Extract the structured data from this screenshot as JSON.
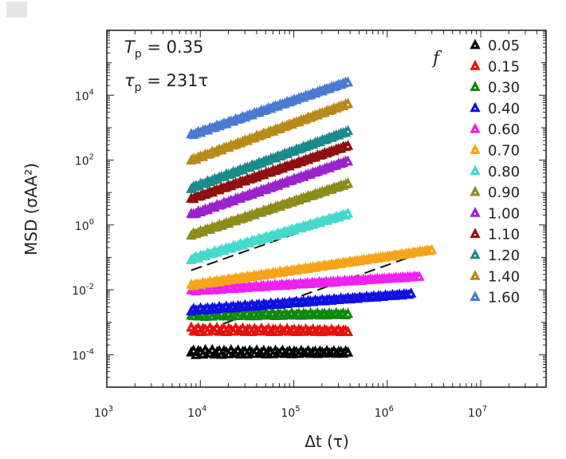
{
  "chart_data": {
    "type": "scatter",
    "xlabel": "Δt (τ)",
    "ylabel": "MSD (σAA²)",
    "x_scale": "log",
    "y_scale": "log",
    "xlim": [
      1000,
      50000000
    ],
    "ylim": [
      1e-05,
      1000000
    ],
    "x_ticks": [
      {
        "value": 1000,
        "base": "10",
        "exp": "3"
      },
      {
        "value": 10000,
        "base": "10",
        "exp": "4"
      },
      {
        "value": 100000,
        "base": "10",
        "exp": "5"
      },
      {
        "value": 1000000,
        "base": "10",
        "exp": "6"
      },
      {
        "value": 10000000,
        "base": "10",
        "exp": "7"
      }
    ],
    "y_ticks": [
      {
        "value": 0.0001,
        "base": "10",
        "exp": "-4"
      },
      {
        "value": 0.01,
        "base": "10",
        "exp": "-2"
      },
      {
        "value": 1,
        "base": "10",
        "exp": "0"
      },
      {
        "value": 100,
        "base": "10",
        "exp": "2"
      },
      {
        "value": 10000,
        "base": "10",
        "exp": "4"
      }
    ],
    "annotations": {
      "tp": {
        "sym": "T",
        "sub": "p",
        "rest": " = 0.35"
      },
      "taup": {
        "sym": "τ",
        "sub": "p",
        "rest": " = 231τ"
      }
    },
    "legend_title": "f",
    "legend_position": "top-right",
    "marker": "triangle",
    "series": [
      {
        "name": "0.05",
        "color": "#000000",
        "x_start": 8000,
        "x_end": 380000,
        "y_start": 0.00012,
        "y_end": 0.00012,
        "wiggle": 0.08
      },
      {
        "name": "0.15",
        "color": "#e8120c",
        "x_start": 8000,
        "x_end": 380000,
        "y_start": 0.0006,
        "y_end": 0.00055,
        "wiggle": 0.07
      },
      {
        "name": "0.30",
        "color": "#0d8a0d",
        "x_start": 8000,
        "x_end": 380000,
        "y_start": 0.0017,
        "y_end": 0.0018,
        "wiggle": 0.06
      },
      {
        "name": "0.40",
        "color": "#1010e0",
        "x_start": 8000,
        "x_end": 1800000,
        "y_start": 0.0024,
        "y_end": 0.0075,
        "wiggle": 0.04
      },
      {
        "name": "0.60",
        "color": "#ee22ee",
        "x_start": 8000,
        "x_end": 2200000,
        "y_start": 0.0095,
        "y_end": 0.026,
        "wiggle": 0.03
      },
      {
        "name": "0.70",
        "color": "#f5a418",
        "x_start": 8000,
        "x_end": 3000000,
        "y_start": 0.014,
        "y_end": 0.17,
        "wiggle": 0.03
      },
      {
        "name": "0.80",
        "color": "#44d9cc",
        "x_start": 8000,
        "x_end": 380000,
        "y_start": 0.09,
        "y_end": 2.2,
        "wiggle": 0.04
      },
      {
        "name": "0.90",
        "color": "#8c8c1a",
        "x_start": 8000,
        "x_end": 380000,
        "y_start": 0.5,
        "y_end": 19,
        "wiggle": 0.03
      },
      {
        "name": "1.00",
        "color": "#9a22cc",
        "x_start": 8000,
        "x_end": 380000,
        "y_start": 2.1,
        "y_end": 95,
        "wiggle": 0.03
      },
      {
        "name": "1.10",
        "color": "#8e1010",
        "x_start": 8000,
        "x_end": 380000,
        "y_start": 6.5,
        "y_end": 280,
        "wiggle": 0.03
      },
      {
        "name": "1.20",
        "color": "#1b8a8a",
        "x_start": 8000,
        "x_end": 380000,
        "y_start": 14,
        "y_end": 780,
        "wiggle": 0.03
      },
      {
        "name": "1.40",
        "color": "#b88a1a",
        "x_start": 8000,
        "x_end": 380000,
        "y_start": 100,
        "y_end": 5500,
        "wiggle": 0.03
      },
      {
        "name": "1.60",
        "color": "#4a7ad0",
        "x_start": 8000,
        "x_end": 380000,
        "y_start": 600,
        "y_end": 26000,
        "wiggle": 0.03
      }
    ],
    "fit_lines": [
      {
        "series": "0.70",
        "x": [
          8000,
          3000000
        ],
        "y": [
          0.0004,
          0.18
        ]
      },
      {
        "series": "0.80",
        "x": [
          8000,
          380000
        ],
        "y": [
          0.04,
          2.0
        ]
      },
      {
        "series": "0.90",
        "x": [
          8000,
          380000
        ],
        "y": [
          0.5,
          18
        ]
      },
      {
        "series": "1.00",
        "x": [
          8000,
          380000
        ],
        "y": [
          2.0,
          90
        ]
      },
      {
        "series": "1.10",
        "x": [
          8000,
          380000
        ],
        "y": [
          6.0,
          270
        ]
      },
      {
        "series": "1.20",
        "x": [
          8000,
          380000
        ],
        "y": [
          14,
          750
        ]
      },
      {
        "series": "1.40",
        "x": [
          8000,
          380000
        ],
        "y": [
          100,
          5300
        ]
      },
      {
        "series": "1.60",
        "x": [
          8000,
          380000
        ],
        "y": [
          600,
          25000
        ]
      }
    ]
  }
}
